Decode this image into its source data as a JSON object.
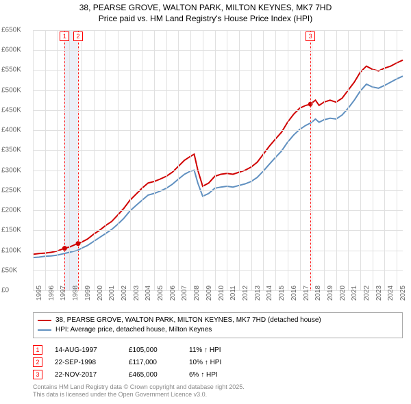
{
  "title_line1": "38, PEARSE GROVE, WALTON PARK, MILTON KEYNES, MK7 7HD",
  "title_line2": "Price paid vs. HM Land Registry's House Price Index (HPI)",
  "chart": {
    "type": "line",
    "xlim": [
      1995,
      2025.5
    ],
    "ylim": [
      0,
      650000
    ],
    "ytick_step": 50000,
    "yticks": [
      "£0",
      "£50K",
      "£100K",
      "£150K",
      "£200K",
      "£250K",
      "£300K",
      "£350K",
      "£400K",
      "£450K",
      "£500K",
      "£550K",
      "£600K",
      "£650K"
    ],
    "xticks": [
      1995,
      1996,
      1997,
      1998,
      1999,
      2000,
      2001,
      2002,
      2003,
      2004,
      2005,
      2006,
      2007,
      2008,
      2009,
      2010,
      2011,
      2012,
      2013,
      2014,
      2015,
      2016,
      2017,
      2018,
      2019,
      2020,
      2021,
      2022,
      2023,
      2024,
      2025
    ],
    "background_color": "#ffffff",
    "grid_color": "#e0e0e0",
    "series": [
      {
        "name": "subject",
        "color": "#d00000",
        "width": 2,
        "points": [
          [
            1995,
            90000
          ],
          [
            1995.5,
            92000
          ],
          [
            1996,
            93000
          ],
          [
            1996.5,
            95000
          ],
          [
            1997,
            98000
          ],
          [
            1997.6,
            105000
          ],
          [
            1998,
            108000
          ],
          [
            1998.7,
            117000
          ],
          [
            1999,
            120000
          ],
          [
            1999.5,
            128000
          ],
          [
            2000,
            140000
          ],
          [
            2000.5,
            150000
          ],
          [
            2001,
            162000
          ],
          [
            2001.5,
            172000
          ],
          [
            2002,
            188000
          ],
          [
            2002.5,
            205000
          ],
          [
            2003,
            225000
          ],
          [
            2003.5,
            240000
          ],
          [
            2004,
            255000
          ],
          [
            2004.5,
            268000
          ],
          [
            2005,
            272000
          ],
          [
            2005.5,
            278000
          ],
          [
            2006,
            285000
          ],
          [
            2006.5,
            295000
          ],
          [
            2007,
            310000
          ],
          [
            2007.5,
            325000
          ],
          [
            2008,
            335000
          ],
          [
            2008.3,
            340000
          ],
          [
            2008.6,
            300000
          ],
          [
            2009,
            260000
          ],
          [
            2009.5,
            268000
          ],
          [
            2010,
            285000
          ],
          [
            2010.5,
            290000
          ],
          [
            2011,
            292000
          ],
          [
            2011.5,
            290000
          ],
          [
            2012,
            295000
          ],
          [
            2012.5,
            300000
          ],
          [
            2013,
            308000
          ],
          [
            2013.5,
            320000
          ],
          [
            2014,
            340000
          ],
          [
            2014.5,
            360000
          ],
          [
            2015,
            378000
          ],
          [
            2015.5,
            395000
          ],
          [
            2016,
            420000
          ],
          [
            2016.5,
            440000
          ],
          [
            2017,
            455000
          ],
          [
            2017.5,
            462000
          ],
          [
            2017.9,
            465000
          ],
          [
            2018,
            468000
          ],
          [
            2018.3,
            475000
          ],
          [
            2018.6,
            462000
          ],
          [
            2019,
            470000
          ],
          [
            2019.5,
            475000
          ],
          [
            2020,
            470000
          ],
          [
            2020.5,
            480000
          ],
          [
            2021,
            500000
          ],
          [
            2021.5,
            520000
          ],
          [
            2022,
            545000
          ],
          [
            2022.5,
            560000
          ],
          [
            2023,
            552000
          ],
          [
            2023.5,
            548000
          ],
          [
            2024,
            555000
          ],
          [
            2024.5,
            560000
          ],
          [
            2025,
            568000
          ],
          [
            2025.5,
            575000
          ]
        ]
      },
      {
        "name": "hpi",
        "color": "#6090c0",
        "width": 2,
        "points": [
          [
            1995,
            82000
          ],
          [
            1995.5,
            83000
          ],
          [
            1996,
            85000
          ],
          [
            1996.5,
            86000
          ],
          [
            1997,
            88000
          ],
          [
            1997.6,
            92000
          ],
          [
            1998,
            95000
          ],
          [
            1998.7,
            100000
          ],
          [
            1999,
            105000
          ],
          [
            1999.5,
            112000
          ],
          [
            2000,
            122000
          ],
          [
            2000.5,
            132000
          ],
          [
            2001,
            142000
          ],
          [
            2001.5,
            152000
          ],
          [
            2002,
            165000
          ],
          [
            2002.5,
            180000
          ],
          [
            2003,
            198000
          ],
          [
            2003.5,
            212000
          ],
          [
            2004,
            225000
          ],
          [
            2004.5,
            238000
          ],
          [
            2005,
            242000
          ],
          [
            2005.5,
            248000
          ],
          [
            2006,
            255000
          ],
          [
            2006.5,
            265000
          ],
          [
            2007,
            278000
          ],
          [
            2007.5,
            290000
          ],
          [
            2008,
            298000
          ],
          [
            2008.3,
            300000
          ],
          [
            2008.6,
            268000
          ],
          [
            2009,
            235000
          ],
          [
            2009.5,
            242000
          ],
          [
            2010,
            255000
          ],
          [
            2010.5,
            258000
          ],
          [
            2011,
            260000
          ],
          [
            2011.5,
            258000
          ],
          [
            2012,
            262000
          ],
          [
            2012.5,
            266000
          ],
          [
            2013,
            272000
          ],
          [
            2013.5,
            282000
          ],
          [
            2014,
            298000
          ],
          [
            2014.5,
            315000
          ],
          [
            2015,
            332000
          ],
          [
            2015.5,
            348000
          ],
          [
            2016,
            370000
          ],
          [
            2016.5,
            388000
          ],
          [
            2017,
            402000
          ],
          [
            2017.5,
            412000
          ],
          [
            2017.9,
            418000
          ],
          [
            2018,
            420000
          ],
          [
            2018.3,
            428000
          ],
          [
            2018.6,
            420000
          ],
          [
            2019,
            426000
          ],
          [
            2019.5,
            430000
          ],
          [
            2020,
            428000
          ],
          [
            2020.5,
            438000
          ],
          [
            2021,
            455000
          ],
          [
            2021.5,
            475000
          ],
          [
            2022,
            498000
          ],
          [
            2022.5,
            515000
          ],
          [
            2023,
            508000
          ],
          [
            2023.5,
            505000
          ],
          [
            2024,
            512000
          ],
          [
            2024.5,
            520000
          ],
          [
            2025,
            528000
          ],
          [
            2025.5,
            535000
          ]
        ]
      }
    ],
    "sale_markers": [
      {
        "n": "1",
        "year": 1997.62,
        "price": 105000
      },
      {
        "n": "2",
        "year": 1998.73,
        "price": 117000
      },
      {
        "n": "3",
        "year": 2017.89,
        "price": 465000
      }
    ]
  },
  "legend": {
    "subject_label": "38, PEARSE GROVE, WALTON PARK, MILTON KEYNES, MK7 7HD (detached house)",
    "hpi_label": "HPI: Average price, detached house, Milton Keynes"
  },
  "sales": [
    {
      "n": "1",
      "date": "14-AUG-1997",
      "price": "£105,000",
      "pct": "11% ↑ HPI"
    },
    {
      "n": "2",
      "date": "22-SEP-1998",
      "price": "£117,000",
      "pct": "10% ↑ HPI"
    },
    {
      "n": "3",
      "date": "22-NOV-2017",
      "price": "£465,000",
      "pct": "6% ↑ HPI"
    }
  ],
  "footer_line1": "Contains HM Land Registry data © Crown copyright and database right 2025.",
  "footer_line2": "This data is licensed under the Open Government Licence v3.0."
}
